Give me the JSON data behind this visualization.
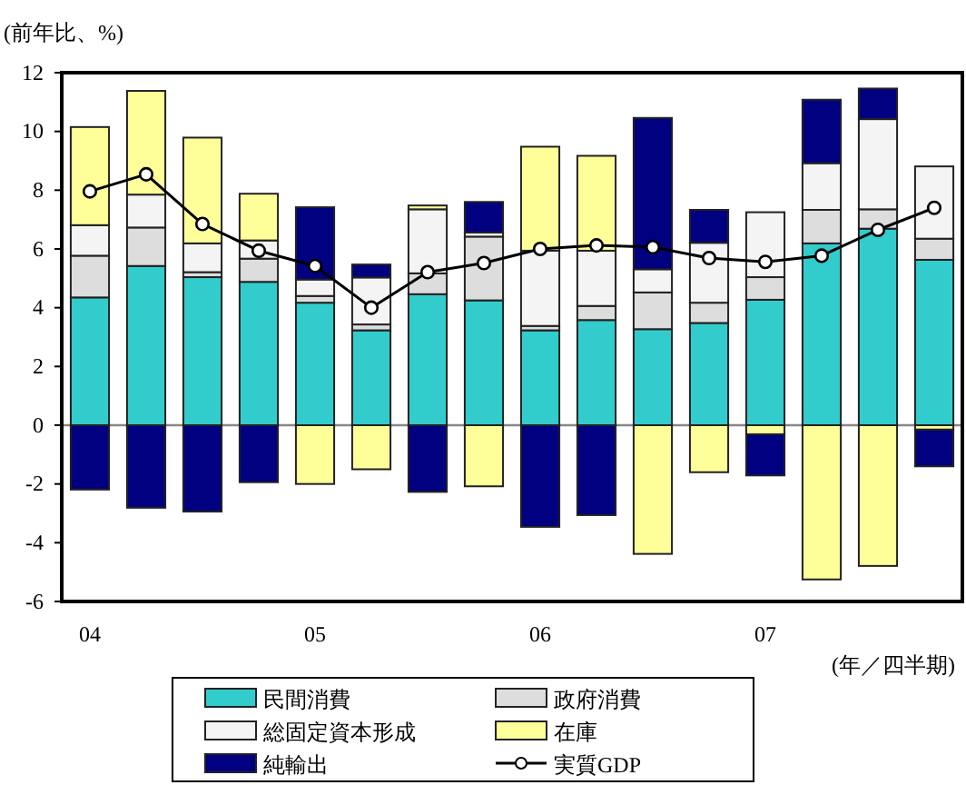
{
  "chart_data": {
    "type": "bar",
    "stacked": true,
    "ylabel": "(前年比、%)",
    "xlabel": "(年／四半期)",
    "categories": [
      "04",
      null,
      null,
      null,
      "05",
      null,
      null,
      null,
      "06",
      null,
      null,
      null,
      "07",
      null,
      null,
      null
    ],
    "ylim": [
      -6,
      12
    ],
    "yticks": [
      -6,
      -4,
      -2,
      0,
      2,
      4,
      6,
      8,
      10,
      12
    ],
    "legend": "bottom",
    "marker": "circle",
    "series": [
      {
        "name": "民間消費",
        "color": "#33cccc",
        "values": [
          4.35,
          5.42,
          5.04,
          4.88,
          4.17,
          3.23,
          4.46,
          4.25,
          3.23,
          3.58,
          3.27,
          3.48,
          4.27,
          6.19,
          6.69,
          5.63
        ]
      },
      {
        "name": "政府消費",
        "color": "#dddddd",
        "values": [
          1.42,
          1.31,
          0.17,
          0.79,
          0.23,
          0.2,
          0.71,
          2.17,
          0.15,
          0.48,
          1.25,
          0.69,
          0.77,
          1.14,
          0.66,
          0.72
        ]
      },
      {
        "name": "総固定資本形成",
        "color": "#f4f4f4",
        "values": [
          1.04,
          1.12,
          0.98,
          0.62,
          0.56,
          1.6,
          2.18,
          0.14,
          2.56,
          1.88,
          0.79,
          2.04,
          2.21,
          1.59,
          3.07,
          2.46
        ]
      },
      {
        "name": "在庫",
        "color": "#ffff99",
        "values": [
          3.34,
          3.53,
          3.6,
          1.59,
          -2.0,
          -1.5,
          0.13,
          -2.08,
          3.54,
          3.23,
          -4.38,
          -1.6,
          -0.31,
          -5.25,
          -4.79,
          -0.15
        ]
      },
      {
        "name": "純輸出",
        "color": "#000080",
        "values": [
          -2.19,
          -2.81,
          -2.94,
          -1.94,
          2.46,
          0.44,
          -2.27,
          1.04,
          -3.46,
          -3.06,
          5.15,
          1.12,
          -1.4,
          2.16,
          1.04,
          -1.25
        ]
      },
      {
        "name": "実質GDP",
        "type": "line",
        "color": "#000000",
        "values": [
          7.96,
          8.54,
          6.85,
          5.94,
          5.42,
          4.0,
          5.21,
          5.52,
          6.0,
          6.12,
          6.06,
          5.69,
          5.56,
          5.77,
          6.65,
          7.4
        ]
      }
    ]
  }
}
